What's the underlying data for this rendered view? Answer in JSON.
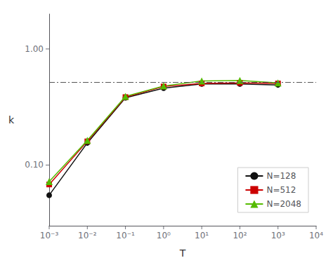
{
  "chart_data": {
    "type": "line",
    "xlabel": "T",
    "ylabel": "k",
    "log": true,
    "grid": false,
    "legend": "lower right",
    "x": [
      0.001,
      0.01,
      0.1,
      1,
      10,
      100,
      1000
    ],
    "series": [
      {
        "name": "N=128",
        "color": "#111111",
        "marker": "circle",
        "values": [
          0.055,
          0.155,
          0.38,
          0.46,
          0.5,
          0.5,
          0.49
        ]
      },
      {
        "name": "N=512",
        "color": "#cc0000",
        "marker": "square",
        "values": [
          0.068,
          0.16,
          0.385,
          0.475,
          0.505,
          0.51,
          0.505
        ]
      },
      {
        "name": "N=2048",
        "color": "#55bb00",
        "marker": "triangle",
        "values": [
          0.072,
          0.163,
          0.39,
          0.48,
          0.53,
          0.535,
          0.51
        ]
      }
    ],
    "hline": 0.52,
    "xlim": [
      0.001,
      10000
    ],
    "xticks": [
      {
        "value": 0.001,
        "label": "10⁻³"
      },
      {
        "value": 0.01,
        "label": "10⁻²"
      },
      {
        "value": 0.1,
        "label": "10⁻¹"
      },
      {
        "value": 1,
        "label": "10⁰"
      },
      {
        "value": 10,
        "label": "10¹"
      },
      {
        "value": 100,
        "label": "10²"
      },
      {
        "value": 1000,
        "label": "10³"
      },
      {
        "value": 10000,
        "label": "10⁴"
      }
    ],
    "ylim": [
      0.03,
      2.0
    ],
    "yticks": [
      {
        "value": 0.1,
        "label": "0.10"
      },
      {
        "value": 1,
        "label": "1.00"
      }
    ]
  }
}
